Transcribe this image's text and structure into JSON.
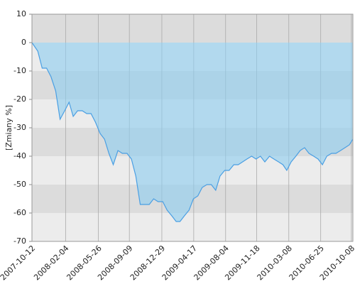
{
  "chart_data": {
    "type": "area",
    "y_label": "[Zmiany %]",
    "x": [
      "2007-10-12",
      "2007-11-01",
      "2007-11-16",
      "2007-12-01",
      "2007-12-16",
      "2008-01-01",
      "2008-01-16",
      "2008-02-01",
      "2008-02-16",
      "2008-03-01",
      "2008-03-16",
      "2008-04-01",
      "2008-04-16",
      "2008-05-01",
      "2008-05-16",
      "2008-06-01",
      "2008-06-16",
      "2008-07-01",
      "2008-07-16",
      "2008-08-01",
      "2008-08-16",
      "2008-09-01",
      "2008-09-16",
      "2008-10-01",
      "2008-10-16",
      "2008-11-01",
      "2008-11-16",
      "2008-12-01",
      "2008-12-16",
      "2009-01-01",
      "2009-01-16",
      "2009-02-01",
      "2009-02-16",
      "2009-03-01",
      "2009-03-16",
      "2009-04-01",
      "2009-04-16",
      "2009-05-01",
      "2009-05-16",
      "2009-06-01",
      "2009-06-16",
      "2009-07-01",
      "2009-07-16",
      "2009-08-01",
      "2009-08-16",
      "2009-09-01",
      "2009-09-16",
      "2009-10-01",
      "2009-10-16",
      "2009-11-01",
      "2009-11-16",
      "2009-12-01",
      "2009-12-16",
      "2010-01-01",
      "2010-01-16",
      "2010-02-01",
      "2010-02-16",
      "2010-03-01",
      "2010-03-16",
      "2010-04-01",
      "2010-04-16",
      "2010-05-01",
      "2010-05-16",
      "2010-06-01",
      "2010-06-16",
      "2010-07-01",
      "2010-07-16",
      "2010-08-01",
      "2010-08-16",
      "2010-09-01",
      "2010-09-16",
      "2010-10-01",
      "2010-10-13"
    ],
    "values": [
      0,
      -3,
      -9,
      -9,
      -12,
      -17,
      -27,
      -24,
      -21,
      -26,
      -24,
      -24,
      -25,
      -25,
      -28,
      -32,
      -34,
      -39,
      -43,
      -38,
      -39,
      -39,
      -41,
      -47,
      -57,
      -57,
      -57,
      -55,
      -56,
      -56,
      -59,
      -61,
      -63,
      -63,
      -61,
      -59,
      -55,
      -54,
      -51,
      -50,
      -50,
      -52,
      -47,
      -45,
      -45,
      -43,
      -43,
      -42,
      -41,
      -40,
      -41,
      -40,
      -42,
      -40,
      -41,
      -42,
      -43,
      -45,
      -42,
      -40,
      -38,
      -37,
      -39,
      -40,
      -41,
      -43,
      -40,
      -39,
      -39,
      -38,
      -37,
      -36,
      -34
    ],
    "color": "#4a9fe3",
    "xlim": [
      "2007-10-12",
      "2010-10-13"
    ],
    "xticks": [
      "2007-10-12",
      "2008-02-04",
      "2008-05-26",
      "2008-09-09",
      "2008-12-29",
      "2009-04-17",
      "2009-08-04",
      "2009-11-18",
      "2010-03-08",
      "2010-06-25",
      "2010-10-08"
    ],
    "ylim": [
      -70,
      10
    ],
    "yticks": [
      10,
      0,
      -10,
      -20,
      -30,
      -40,
      -50,
      -60,
      -70
    ],
    "grid": true
  }
}
